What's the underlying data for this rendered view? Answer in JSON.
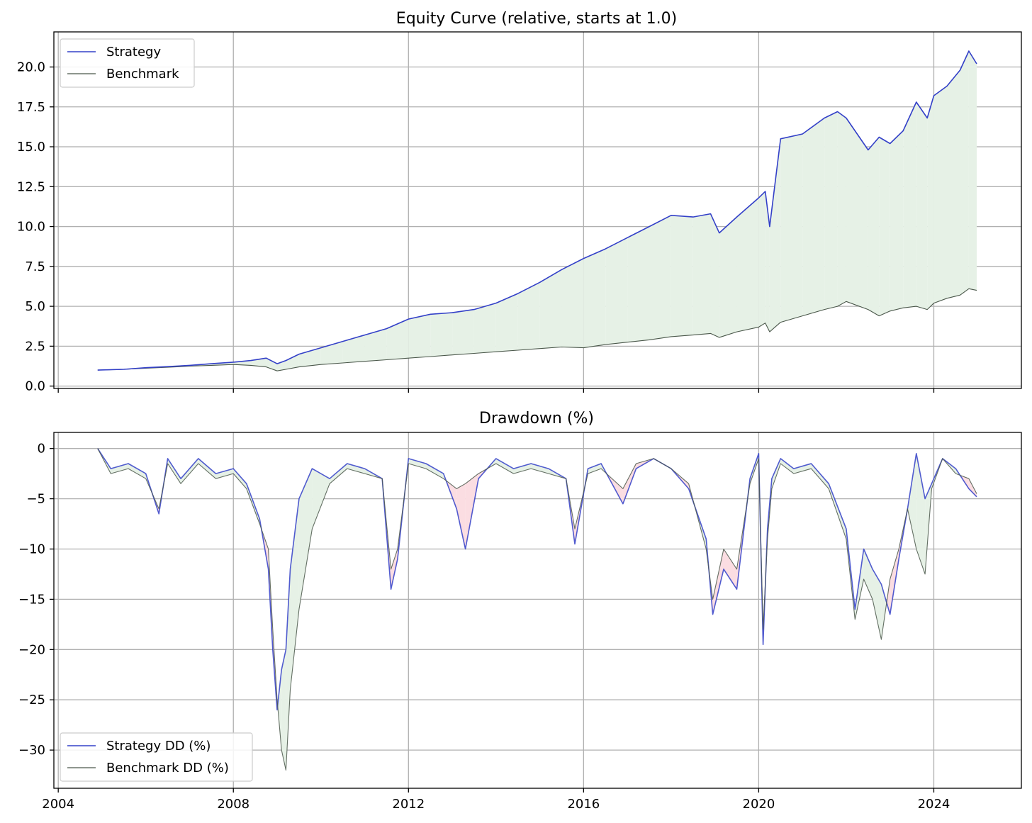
{
  "colors": {
    "strategy": "#3340c8",
    "benchmark": "#4a574a",
    "fill_outperform": "#e6f1e6",
    "fill_underperform": "#fbdde2",
    "grid": "#b0b0b0"
  },
  "chart_data": [
    {
      "type": "line",
      "title": "Equity Curve (relative, starts at 1.0)",
      "xlabel": "",
      "ylabel": "",
      "xlim": [
        2003.9,
        2026.0
      ],
      "ylim": [
        -0.15,
        22.2
      ],
      "x_ticks": [
        2004,
        2008,
        2012,
        2016,
        2020,
        2024
      ],
      "x_tick_labels_visible": false,
      "y_ticks": [
        0.0,
        2.5,
        5.0,
        7.5,
        10.0,
        12.5,
        15.0,
        17.5,
        20.0
      ],
      "y_tick_labels": [
        "0.0",
        "2.5",
        "5.0",
        "7.5",
        "10.0",
        "12.5",
        "15.0",
        "17.5",
        "20.0"
      ],
      "grid": true,
      "legend": {
        "placement": "upper-left",
        "entries": [
          "Strategy",
          "Benchmark"
        ]
      },
      "fill_between": "green where strategy above benchmark",
      "x": [
        2004.9,
        2005.5,
        2006.0,
        2006.5,
        2007.0,
        2007.5,
        2008.0,
        2008.4,
        2008.75,
        2009.0,
        2009.2,
        2009.5,
        2010.0,
        2010.5,
        2011.0,
        2011.5,
        2012.0,
        2012.5,
        2013.0,
        2013.5,
        2014.0,
        2014.5,
        2015.0,
        2015.5,
        2016.0,
        2016.5,
        2017.0,
        2017.5,
        2018.0,
        2018.5,
        2018.9,
        2019.1,
        2019.5,
        2020.0,
        2020.15,
        2020.25,
        2020.5,
        2021.0,
        2021.5,
        2021.8,
        2022.0,
        2022.5,
        2022.75,
        2023.0,
        2023.3,
        2023.6,
        2023.85,
        2024.0,
        2024.3,
        2024.6,
        2024.8,
        2024.98
      ],
      "series": [
        {
          "name": "Strategy",
          "values": [
            1.0,
            1.05,
            1.15,
            1.22,
            1.3,
            1.4,
            1.5,
            1.6,
            1.75,
            1.4,
            1.6,
            2.0,
            2.4,
            2.8,
            3.2,
            3.6,
            4.2,
            4.5,
            4.6,
            4.8,
            5.2,
            5.8,
            6.5,
            7.3,
            8.0,
            8.6,
            9.3,
            10.0,
            10.7,
            10.6,
            10.8,
            9.6,
            10.6,
            11.8,
            12.2,
            10.0,
            15.5,
            15.8,
            16.8,
            17.2,
            16.8,
            14.8,
            15.6,
            15.2,
            16.0,
            17.8,
            16.8,
            18.2,
            18.8,
            19.8,
            21.0,
            20.2
          ]
        },
        {
          "name": "Benchmark",
          "values": [
            1.0,
            1.05,
            1.12,
            1.18,
            1.25,
            1.3,
            1.35,
            1.3,
            1.2,
            0.95,
            1.05,
            1.2,
            1.35,
            1.45,
            1.55,
            1.65,
            1.75,
            1.85,
            1.95,
            2.05,
            2.15,
            2.25,
            2.35,
            2.45,
            2.4,
            2.6,
            2.75,
            2.9,
            3.1,
            3.2,
            3.3,
            3.05,
            3.4,
            3.7,
            3.95,
            3.4,
            4.0,
            4.4,
            4.8,
            5.0,
            5.3,
            4.8,
            4.4,
            4.7,
            4.9,
            5.0,
            4.8,
            5.2,
            5.5,
            5.7,
            6.1,
            6.0
          ]
        }
      ]
    },
    {
      "type": "area",
      "title": "Drawdown (%)",
      "xlabel": "",
      "ylabel": "",
      "xlim": [
        2003.9,
        2026.0
      ],
      "ylim": [
        -33.8,
        1.6
      ],
      "x_ticks": [
        2004,
        2008,
        2012,
        2016,
        2020,
        2024
      ],
      "x_tick_labels": [
        "2004",
        "2008",
        "2012",
        "2016",
        "2020",
        "2024"
      ],
      "y_ticks": [
        0,
        -5,
        -10,
        -15,
        -20,
        -25,
        -30
      ],
      "y_tick_labels": [
        "0",
        "−5",
        "−10",
        "−15",
        "−20",
        "−25",
        "−30"
      ],
      "grid": true,
      "legend": {
        "placement": "lower-left",
        "entries": [
          "Strategy DD (%)",
          "Benchmark DD (%)"
        ]
      },
      "fill_between": "green where strategy DD above benchmark DD, pink where below",
      "x": [
        2004.9,
        2005.2,
        2005.6,
        2006.0,
        2006.3,
        2006.5,
        2006.8,
        2007.2,
        2007.6,
        2008.0,
        2008.3,
        2008.6,
        2008.8,
        2008.9,
        2009.0,
        2009.1,
        2009.2,
        2009.3,
        2009.5,
        2009.8,
        2010.2,
        2010.6,
        2011.0,
        2011.4,
        2011.6,
        2011.75,
        2012.0,
        2012.4,
        2012.8,
        2013.1,
        2013.3,
        2013.6,
        2014.0,
        2014.4,
        2014.8,
        2015.2,
        2015.6,
        2015.8,
        2016.1,
        2016.4,
        2016.9,
        2017.2,
        2017.6,
        2018.0,
        2018.4,
        2018.8,
        2018.95,
        2019.2,
        2019.5,
        2019.8,
        2020.0,
        2020.1,
        2020.2,
        2020.3,
        2020.5,
        2020.8,
        2021.2,
        2021.6,
        2022.0,
        2022.2,
        2022.4,
        2022.6,
        2022.8,
        2023.0,
        2023.2,
        2023.4,
        2023.6,
        2023.8,
        2023.95,
        2024.2,
        2024.5,
        2024.8,
        2024.98
      ],
      "series": [
        {
          "name": "Strategy DD (%)",
          "values": [
            0,
            -2.0,
            -1.5,
            -2.5,
            -6.5,
            -1.0,
            -3.0,
            -1.0,
            -2.5,
            -2.0,
            -3.5,
            -7.0,
            -12.0,
            -20.0,
            -26.0,
            -22.0,
            -20.0,
            -12.0,
            -5.0,
            -2.0,
            -3.0,
            -1.5,
            -2.0,
            -3.0,
            -14.0,
            -11.0,
            -1.0,
            -1.5,
            -2.5,
            -6.0,
            -10.0,
            -3.0,
            -1.0,
            -2.0,
            -1.5,
            -2.0,
            -3.0,
            -9.5,
            -2.0,
            -1.5,
            -5.5,
            -2.0,
            -1.0,
            -2.0,
            -4.0,
            -9.0,
            -16.5,
            -12.0,
            -14.0,
            -3.0,
            -0.5,
            -19.5,
            -8.0,
            -3.0,
            -1.0,
            -2.0,
            -1.5,
            -3.5,
            -8.0,
            -16.0,
            -10.0,
            -12.0,
            -13.5,
            -16.5,
            -11.0,
            -6.0,
            -0.5,
            -5.0,
            -3.5,
            -1.0,
            -2.0,
            -4.0,
            -4.8
          ]
        },
        {
          "name": "Benchmark DD (%)",
          "values": [
            0,
            -2.5,
            -2.0,
            -3.0,
            -6.0,
            -1.5,
            -3.5,
            -1.5,
            -3.0,
            -2.5,
            -4.0,
            -7.5,
            -10.0,
            -18.0,
            -25.0,
            -30.0,
            -32.0,
            -24.0,
            -16.0,
            -8.0,
            -3.5,
            -2.0,
            -2.5,
            -3.0,
            -12.0,
            -10.0,
            -1.5,
            -2.0,
            -3.0,
            -4.0,
            -3.5,
            -2.5,
            -1.5,
            -2.5,
            -2.0,
            -2.5,
            -3.0,
            -8.0,
            -2.5,
            -2.0,
            -4.0,
            -1.5,
            -1.0,
            -2.0,
            -3.5,
            -10.0,
            -15.0,
            -10.0,
            -12.0,
            -3.5,
            -1.0,
            -18.0,
            -9.0,
            -4.0,
            -1.5,
            -2.5,
            -2.0,
            -4.0,
            -9.0,
            -17.0,
            -13.0,
            -15.0,
            -19.0,
            -13.0,
            -10.0,
            -6.0,
            -10.0,
            -12.5,
            -4.0,
            -1.0,
            -2.5,
            -3.0,
            -4.5
          ]
        }
      ]
    }
  ]
}
